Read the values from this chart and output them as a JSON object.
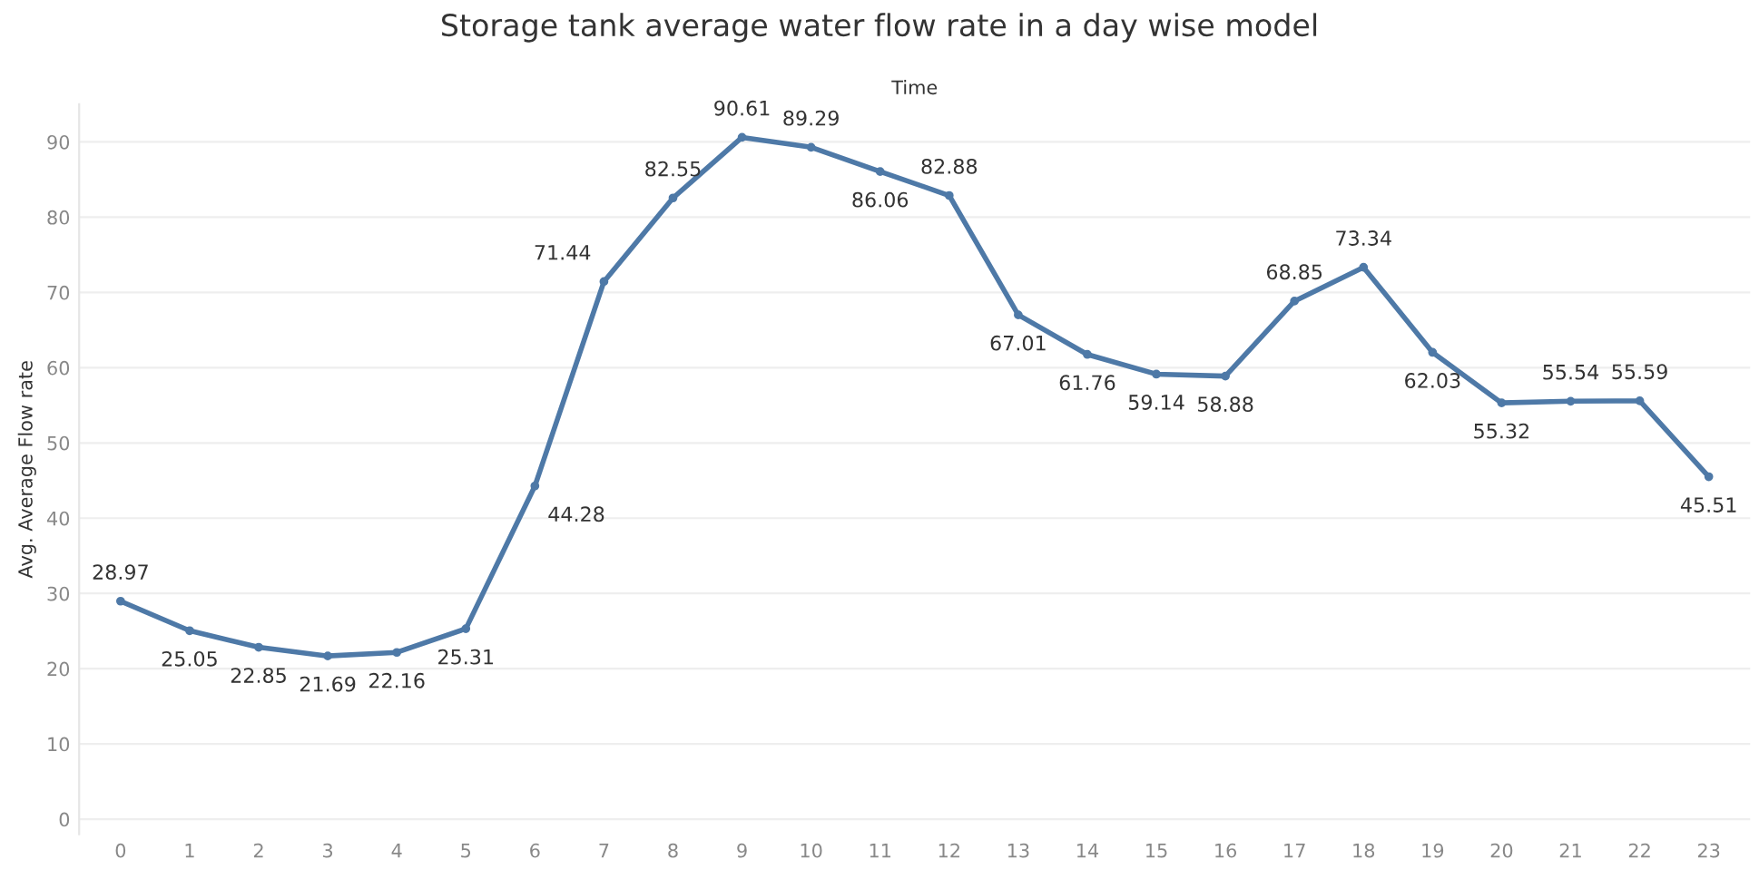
{
  "chart_data": {
    "type": "line",
    "title": "Storage tank average water flow rate in a day wise model",
    "xlabel": "Time",
    "ylabel": "Avg. Average Flow rate",
    "categories": [
      "0",
      "1",
      "2",
      "3",
      "4",
      "5",
      "6",
      "7",
      "8",
      "9",
      "10",
      "11",
      "12",
      "13",
      "14",
      "15",
      "16",
      "17",
      "18",
      "19",
      "20",
      "21",
      "22",
      "23"
    ],
    "series": [
      {
        "color": "#4e79a7",
        "values": [
          28.97,
          25.05,
          22.85,
          21.69,
          22.16,
          25.31,
          44.28,
          71.44,
          82.55,
          90.61,
          89.29,
          86.06,
          82.88,
          67.01,
          61.76,
          59.14,
          58.88,
          68.85,
          73.34,
          62.03,
          55.32,
          55.54,
          55.59,
          45.51
        ]
      }
    ],
    "ylim": [
      -2,
      95
    ],
    "yticks": [
      0,
      10,
      20,
      30,
      40,
      50,
      60,
      70,
      80,
      90
    ],
    "grid": "y",
    "data_labels": true,
    "marker": "circle",
    "line_style": "solid",
    "legend": false
  }
}
